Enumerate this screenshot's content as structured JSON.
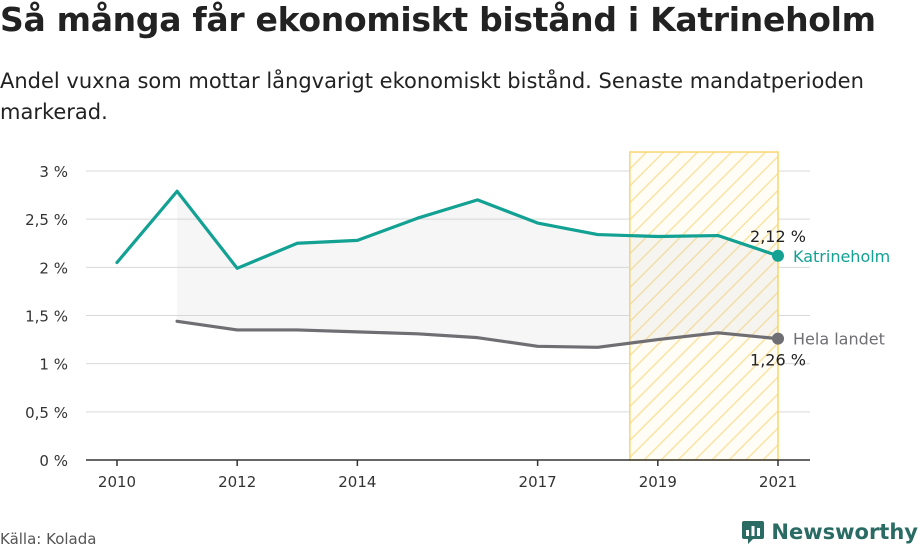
{
  "title": "Så många får ekonomiskt bistånd i Katrineholm",
  "subtitle": "Andel vuxna som mottar långvarigt ekonomiskt bistånd. Senaste mandatperioden markerad.",
  "source": "Källa: Kolada",
  "brand": "Newsworthy",
  "colors": {
    "katrineholm": "#12a193",
    "riket": "#6f6e72",
    "highlight_stroke": "#fad56b",
    "highlight_hatch": "#fbe3a3",
    "grid": "#d9d9d9"
  },
  "chart_data": {
    "type": "line",
    "x_ticks": [
      2010,
      2012,
      2014,
      2017,
      2019,
      2021
    ],
    "y_ticks": [
      "0 %",
      "0,5 %",
      "1 %",
      "1,5 %",
      "2 %",
      "2,5 %",
      "3 %"
    ],
    "ylim": [
      0,
      3
    ],
    "xlim": [
      2010,
      2021
    ],
    "highlight_period": [
      2019,
      2021
    ],
    "series": [
      {
        "name": "Katrineholm",
        "x": [
          2010,
          2011,
          2012,
          2013,
          2014,
          2015,
          2016,
          2017,
          2018,
          2019,
          2020,
          2021
        ],
        "values": [
          2.05,
          2.79,
          1.99,
          2.25,
          2.28,
          2.51,
          2.7,
          2.46,
          2.34,
          2.32,
          2.33,
          2.12
        ],
        "end_label": "2,12 %"
      },
      {
        "name": "Hela landet",
        "x": [
          2011,
          2012,
          2013,
          2014,
          2015,
          2016,
          2017,
          2018,
          2019,
          2020,
          2021
        ],
        "values": [
          1.44,
          1.35,
          1.35,
          1.33,
          1.31,
          1.27,
          1.18,
          1.17,
          1.25,
          1.32,
          1.26
        ],
        "end_label": "1,26 %"
      }
    ]
  }
}
